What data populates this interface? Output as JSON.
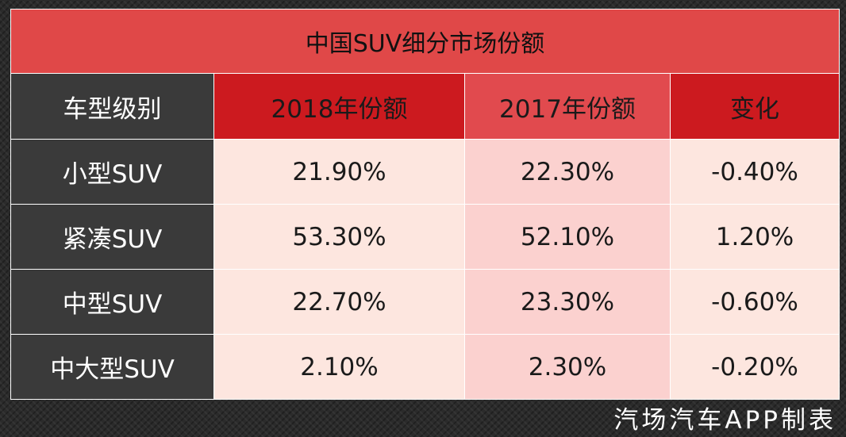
{
  "chart_data": {
    "type": "table",
    "title": "中国SUV细分市场份额",
    "columns": [
      "车型级别",
      "2018年份额",
      "2017年份额",
      "变化"
    ],
    "rows": [
      {
        "category": "小型SUV",
        "share_2018": "21.90%",
        "share_2017": "22.30%",
        "change": "-0.40%"
      },
      {
        "category": "紧凑SUV",
        "share_2018": "53.30%",
        "share_2017": "52.10%",
        "change": "1.20%"
      },
      {
        "category": "中型SUV",
        "share_2018": "22.70%",
        "share_2017": "23.30%",
        "change": "-0.60%"
      },
      {
        "category": "中大型SUV",
        "share_2018": "2.10%",
        "share_2017": "2.30%",
        "change": "-0.20%"
      }
    ]
  },
  "watermark": "汽场汽车APP制表",
  "colors": {
    "title_bg": "#e04848",
    "header_dark": "#cc1a1f",
    "header_light": "#e14a4e",
    "label_bg": "#3a3a3a",
    "cell_light": "#fde6df",
    "cell_pink": "#fbd1cf"
  }
}
